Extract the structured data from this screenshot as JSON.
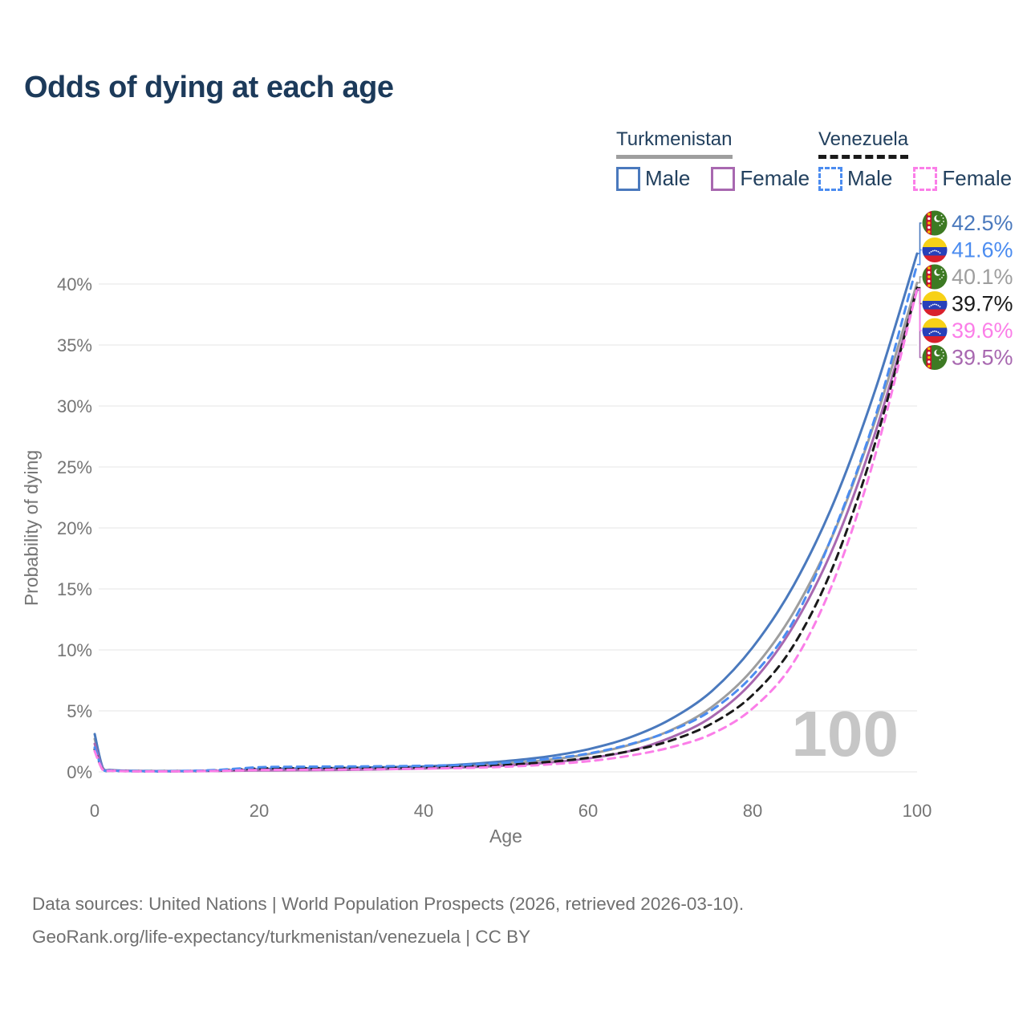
{
  "title": "Odds of dying at each age",
  "legend": {
    "countries": [
      {
        "name": "Turkmenistan",
        "line_style": "solid",
        "line_color": "#9e9e9e",
        "items": [
          {
            "label": "Male",
            "color": "#4a79bd",
            "style": "solid"
          },
          {
            "label": "Female",
            "color": "#a868b0",
            "style": "solid"
          }
        ]
      },
      {
        "name": "Venezuela",
        "line_style": "dashed",
        "line_color": "#1a1a1a",
        "items": [
          {
            "label": "Male",
            "color": "#4b8cf0",
            "style": "dashed"
          },
          {
            "label": "Female",
            "color": "#fb7ee8",
            "style": "dashed"
          }
        ]
      }
    ]
  },
  "watermark": "100",
  "footer": {
    "line1": "Data sources: United Nations | World Population Prospects (2026, retrieved 2026-03-10).",
    "line2": "GeoRank.org/life-expectancy/turkmenistan/venezuela | CC BY"
  },
  "chart_data": {
    "type": "line",
    "title": "Odds of dying at each age",
    "xlabel": "Age",
    "ylabel": "Probability of dying",
    "x_ticks": [
      0,
      20,
      40,
      60,
      80,
      100
    ],
    "y_ticks_percent": [
      0,
      5,
      10,
      15,
      20,
      25,
      30,
      35,
      40
    ],
    "xlim": [
      0,
      100
    ],
    "ylim_percent": [
      0,
      44
    ],
    "x": [
      0,
      1,
      2,
      5,
      10,
      15,
      20,
      25,
      30,
      35,
      40,
      45,
      50,
      55,
      60,
      65,
      70,
      75,
      80,
      85,
      90,
      95,
      100
    ],
    "series": [
      {
        "key": "turkmenistan-both",
        "name": "Turkmenistan",
        "country": "Turkmenistan",
        "sex": "Both",
        "style": "solid",
        "color": "#9e9e9e",
        "flag": "turkmenistan",
        "end_value": "42.5%_placeholder_not_used",
        "label_row": -1,
        "values": [
          2.7,
          0.26,
          0.13,
          0.07,
          0.06,
          0.08,
          0.16,
          0.2,
          0.24,
          0.29,
          0.36,
          0.48,
          0.68,
          0.98,
          1.45,
          2.2,
          3.4,
          5.3,
          8.4,
          13.1,
          19.8,
          29.0,
          40.1
        ],
        "end_label": "40.1%",
        "row": 2
      },
      {
        "key": "turkmenistan-male",
        "name": "Turkmenistan Male",
        "country": "Turkmenistan",
        "sex": "Male",
        "style": "solid",
        "color": "#4a79bd",
        "flag": "turkmenistan",
        "values": [
          3.1,
          0.3,
          0.15,
          0.08,
          0.07,
          0.1,
          0.22,
          0.28,
          0.32,
          0.38,
          0.45,
          0.62,
          0.88,
          1.25,
          1.85,
          2.8,
          4.3,
          6.6,
          10.2,
          15.3,
          22.3,
          31.5,
          42.5
        ],
        "end_label": "42.5%",
        "row": 0
      },
      {
        "key": "turkmenistan-female",
        "name": "Turkmenistan Female",
        "country": "Turkmenistan",
        "sex": "Female",
        "style": "solid",
        "color": "#a868b0",
        "flag": "turkmenistan",
        "values": [
          2.3,
          0.22,
          0.11,
          0.06,
          0.05,
          0.07,
          0.11,
          0.13,
          0.16,
          0.21,
          0.27,
          0.37,
          0.52,
          0.75,
          1.1,
          1.7,
          2.8,
          4.5,
          7.4,
          12.0,
          18.7,
          28.0,
          39.5
        ],
        "end_label": "39.5%",
        "row": 5
      },
      {
        "key": "venezuela-both",
        "name": "Venezuela",
        "country": "Venezuela",
        "sex": "Both",
        "style": "dashed",
        "color": "#1a1a1a",
        "flag": "venezuela",
        "values": [
          1.85,
          0.16,
          0.09,
          0.05,
          0.05,
          0.12,
          0.27,
          0.3,
          0.31,
          0.33,
          0.37,
          0.44,
          0.57,
          0.8,
          1.15,
          1.7,
          2.55,
          3.95,
          6.3,
          10.4,
          17.2,
          27.2,
          39.7
        ],
        "end_label": "39.7%",
        "row": 3
      },
      {
        "key": "venezuela-male",
        "name": "Venezuela Male",
        "country": "Venezuela",
        "sex": "Male",
        "style": "dashed",
        "color": "#4b8cf0",
        "flag": "venezuela",
        "values": [
          2.0,
          0.18,
          0.1,
          0.06,
          0.06,
          0.16,
          0.38,
          0.42,
          0.44,
          0.46,
          0.5,
          0.58,
          0.75,
          1.05,
          1.5,
          2.25,
          3.35,
          5.05,
          7.9,
          12.4,
          19.9,
          29.3,
          41.6
        ],
        "end_label": "41.6%",
        "row": 1
      },
      {
        "key": "venezuela-female",
        "name": "Venezuela Female",
        "country": "Venezuela",
        "sex": "Female",
        "style": "dashed",
        "color": "#fb7ee8",
        "flag": "venezuela",
        "values": [
          1.7,
          0.14,
          0.08,
          0.04,
          0.04,
          0.08,
          0.15,
          0.17,
          0.19,
          0.22,
          0.26,
          0.32,
          0.42,
          0.6,
          0.87,
          1.32,
          2.0,
          3.1,
          5.2,
          9.0,
          15.9,
          26.2,
          39.6
        ],
        "end_label": "39.6%",
        "row": 4
      }
    ]
  }
}
